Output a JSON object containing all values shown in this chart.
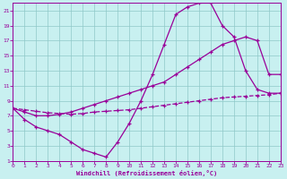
{
  "xlabel": "Windchill (Refroidissement éolien,°C)",
  "background_color": "#c8f0f0",
  "grid_color": "#8fc8c8",
  "line_color": "#990099",
  "xlim": [
    0,
    23
  ],
  "ylim": [
    1,
    22
  ],
  "xticks": [
    0,
    1,
    2,
    3,
    4,
    5,
    6,
    7,
    8,
    9,
    10,
    11,
    12,
    13,
    14,
    15,
    16,
    17,
    18,
    19,
    20,
    21,
    22,
    23
  ],
  "yticks": [
    1,
    3,
    5,
    7,
    9,
    11,
    13,
    15,
    17,
    19,
    21
  ],
  "curve1_x": [
    0,
    1,
    2,
    3,
    4,
    5,
    6,
    7,
    8,
    9,
    10,
    11,
    12,
    13,
    14,
    15,
    16,
    17,
    18,
    19,
    20,
    21,
    22,
    23
  ],
  "curve1_y": [
    8.0,
    6.5,
    5.5,
    5.0,
    4.5,
    3.5,
    2.5,
    2.0,
    1.5,
    3.5,
    6.0,
    9.0,
    12.5,
    16.5,
    20.5,
    21.5,
    22.0,
    22.0,
    19.0,
    17.5,
    13.0,
    10.5,
    10.0,
    10.0
  ],
  "curve2_x": [
    0,
    1,
    2,
    3,
    4,
    5,
    6,
    7,
    8,
    9,
    10,
    11,
    12,
    13,
    14,
    15,
    16,
    17,
    18,
    19,
    20,
    21,
    22,
    23
  ],
  "curve2_y": [
    8.0,
    7.5,
    7.0,
    7.0,
    7.2,
    7.5,
    8.0,
    8.5,
    9.0,
    9.5,
    10.0,
    10.5,
    11.0,
    11.5,
    12.5,
    13.5,
    14.5,
    15.5,
    16.5,
    17.0,
    17.5,
    17.0,
    12.5,
    12.5
  ],
  "curve3_x": [
    0,
    1,
    2,
    3,
    4,
    5,
    6,
    7,
    8,
    9,
    10,
    11,
    12,
    13,
    14,
    15,
    16,
    17,
    18,
    19,
    20,
    21,
    22,
    23
  ],
  "curve3_y": [
    8.0,
    7.8,
    7.6,
    7.4,
    7.3,
    7.2,
    7.3,
    7.5,
    7.6,
    7.7,
    7.8,
    8.0,
    8.2,
    8.4,
    8.6,
    8.8,
    9.0,
    9.2,
    9.4,
    9.5,
    9.6,
    9.7,
    9.8,
    10.0
  ]
}
